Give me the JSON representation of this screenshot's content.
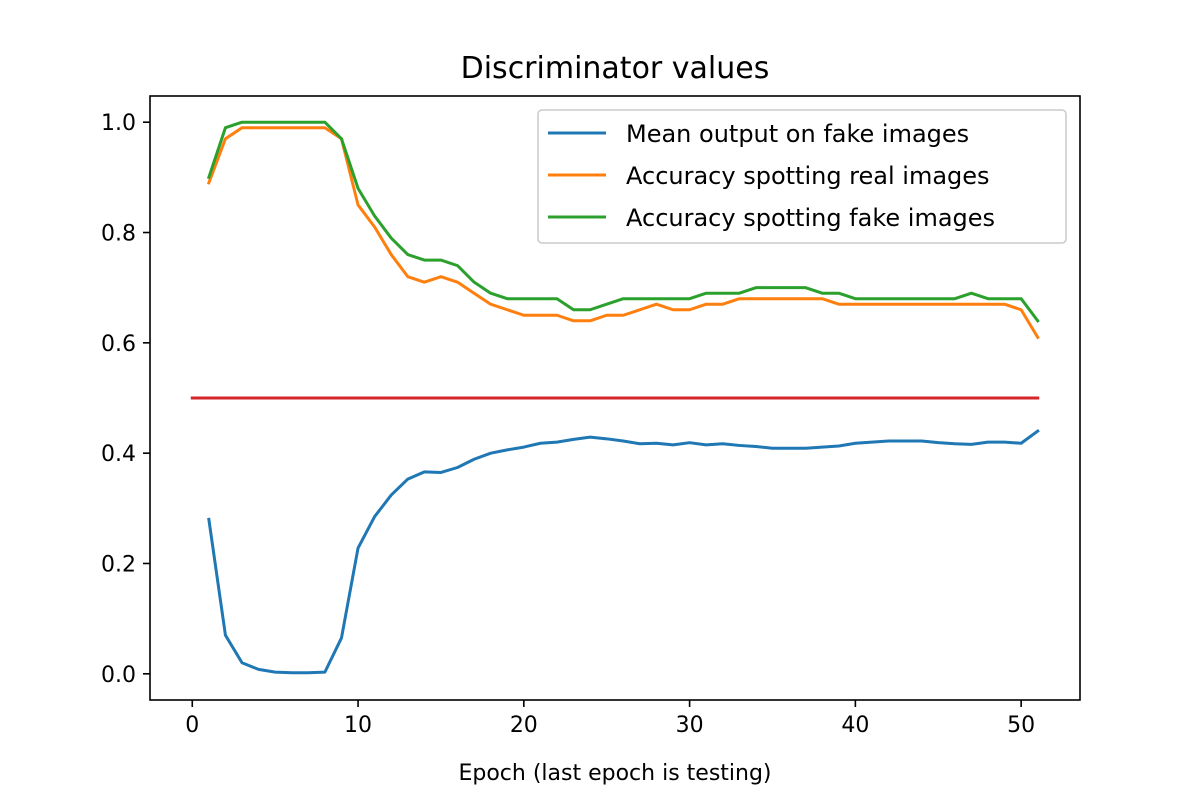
{
  "chart_data": {
    "type": "line",
    "title": "Discriminator values",
    "xlabel": "Epoch (last epoch is testing)",
    "ylabel": "",
    "xlim": [
      -2.55,
      53.55
    ],
    "ylim": [
      -0.0475,
      1.0475
    ],
    "xticks": [
      0,
      10,
      20,
      30,
      40,
      50
    ],
    "yticks": [
      0.0,
      0.2,
      0.4,
      0.6,
      0.8,
      1.0
    ],
    "ytick_labels": [
      "0.0",
      "0.2",
      "0.4",
      "0.6",
      "0.8",
      "1.0"
    ],
    "grid": false,
    "legend_position": "upper right",
    "colors": {
      "blue": "#1f77b4",
      "orange": "#ff7f0e",
      "green": "#2ca02c",
      "red": "#d62728"
    },
    "series": [
      {
        "name": "Mean output on fake images",
        "color": "#1f77b4",
        "x": [
          1,
          2,
          3,
          4,
          5,
          6,
          7,
          8,
          9,
          10,
          11,
          12,
          13,
          14,
          15,
          16,
          17,
          18,
          19,
          20,
          21,
          22,
          23,
          24,
          25,
          26,
          27,
          28,
          29,
          30,
          31,
          32,
          33,
          34,
          35,
          36,
          37,
          38,
          39,
          40,
          41,
          42,
          43,
          44,
          45,
          46,
          47,
          48,
          49,
          50,
          51
        ],
        "y": [
          0.28,
          0.07,
          0.02,
          0.008,
          0.003,
          0.002,
          0.002,
          0.003,
          0.065,
          0.228,
          0.285,
          0.324,
          0.353,
          0.366,
          0.365,
          0.374,
          0.389,
          0.4,
          0.406,
          0.411,
          0.418,
          0.42,
          0.425,
          0.429,
          0.426,
          0.422,
          0.417,
          0.418,
          0.415,
          0.419,
          0.415,
          0.417,
          0.414,
          0.412,
          0.409,
          0.409,
          0.409,
          0.411,
          0.413,
          0.418,
          0.42,
          0.422,
          0.422,
          0.422,
          0.419,
          0.417,
          0.416,
          0.42,
          0.42,
          0.418,
          0.44
        ]
      },
      {
        "name": "Accuracy spotting real images",
        "color": "#ff7f0e",
        "x": [
          1,
          2,
          3,
          4,
          5,
          6,
          7,
          8,
          9,
          10,
          11,
          12,
          13,
          14,
          15,
          16,
          17,
          18,
          19,
          20,
          21,
          22,
          23,
          24,
          25,
          26,
          27,
          28,
          29,
          30,
          31,
          32,
          33,
          34,
          35,
          36,
          37,
          38,
          39,
          40,
          41,
          42,
          43,
          44,
          45,
          46,
          47,
          48,
          49,
          50,
          51
        ],
        "y": [
          0.89,
          0.97,
          0.99,
          0.99,
          0.99,
          0.99,
          0.99,
          0.99,
          0.97,
          0.85,
          0.81,
          0.76,
          0.72,
          0.71,
          0.72,
          0.71,
          0.69,
          0.67,
          0.66,
          0.65,
          0.65,
          0.65,
          0.64,
          0.64,
          0.65,
          0.65,
          0.66,
          0.67,
          0.66,
          0.66,
          0.67,
          0.67,
          0.68,
          0.68,
          0.68,
          0.68,
          0.68,
          0.68,
          0.67,
          0.67,
          0.67,
          0.67,
          0.67,
          0.67,
          0.67,
          0.67,
          0.67,
          0.67,
          0.67,
          0.66,
          0.61
        ]
      },
      {
        "name": "Accuracy spotting fake images",
        "color": "#2ca02c",
        "x": [
          1,
          2,
          3,
          4,
          5,
          6,
          7,
          8,
          9,
          10,
          11,
          12,
          13,
          14,
          15,
          16,
          17,
          18,
          19,
          20,
          21,
          22,
          23,
          24,
          25,
          26,
          27,
          28,
          29,
          30,
          31,
          32,
          33,
          34,
          35,
          36,
          37,
          38,
          39,
          40,
          41,
          42,
          43,
          44,
          45,
          46,
          47,
          48,
          49,
          50,
          51
        ],
        "y": [
          0.9,
          0.99,
          1.0,
          1.0,
          1.0,
          1.0,
          1.0,
          1.0,
          0.97,
          0.88,
          0.83,
          0.79,
          0.76,
          0.75,
          0.75,
          0.74,
          0.71,
          0.69,
          0.68,
          0.68,
          0.68,
          0.68,
          0.66,
          0.66,
          0.67,
          0.68,
          0.68,
          0.68,
          0.68,
          0.68,
          0.69,
          0.69,
          0.69,
          0.7,
          0.7,
          0.7,
          0.7,
          0.69,
          0.69,
          0.68,
          0.68,
          0.68,
          0.68,
          0.68,
          0.68,
          0.68,
          0.69,
          0.68,
          0.68,
          0.68,
          0.64
        ]
      },
      {
        "color": "#d62728",
        "x": [
          0,
          51
        ],
        "y": [
          0.5,
          0.5
        ]
      }
    ]
  }
}
